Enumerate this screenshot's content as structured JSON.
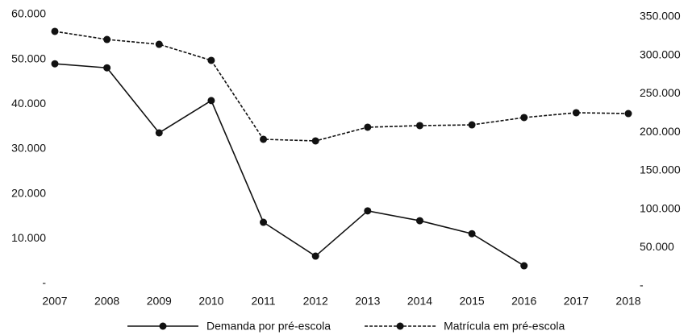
{
  "chart_data": {
    "type": "line",
    "x": [
      2007,
      2008,
      2009,
      2010,
      2011,
      2012,
      2013,
      2014,
      2015,
      2016,
      2017,
      2018
    ],
    "xlim": [
      2007,
      2018
    ],
    "xticks": [
      2007,
      2008,
      2009,
      2010,
      2011,
      2012,
      2013,
      2014,
      2015,
      2016,
      2017,
      2018
    ],
    "ylim": [
      0,
      60000
    ],
    "yticks": [
      {
        "value": 0,
        "label": "-"
      },
      {
        "value": 10000,
        "label": "10.000"
      },
      {
        "value": 20000,
        "label": "20.000"
      },
      {
        "value": 30000,
        "label": "30.000"
      },
      {
        "value": 40000,
        "label": "40.000"
      },
      {
        "value": 50000,
        "label": "50.000"
      },
      {
        "value": 60000,
        "label": "60.000"
      }
    ],
    "y2lim": [
      0,
      350000
    ],
    "y2ticks": [
      {
        "value": 0,
        "label": "-"
      },
      {
        "value": 50000,
        "label": "50.000"
      },
      {
        "value": 100000,
        "label": "100.000"
      },
      {
        "value": 150000,
        "label": "150.000"
      },
      {
        "value": 200000,
        "label": "200.000"
      },
      {
        "value": 250000,
        "label": "250.000"
      },
      {
        "value": 300000,
        "label": "300.000"
      },
      {
        "value": 350000,
        "label": "350.000"
      }
    ],
    "legend": "bottom",
    "series": [
      {
        "name": "Demanda por pré-escola",
        "color": "#111111",
        "style": "solid",
        "axis": "y",
        "values": [
          49000,
          48100,
          33600,
          40800,
          13650,
          6100,
          16200,
          14000,
          11100,
          3950,
          null,
          null
        ]
      },
      {
        "name": "Matrícula em pré-escola",
        "color": "#111111",
        "style": "dashed",
        "axis": "y2",
        "values": [
          328000,
          317500,
          311200,
          290300,
          187600,
          185500,
          203300,
          205400,
          206400,
          215900,
          222200,
          221100
        ]
      }
    ]
  }
}
